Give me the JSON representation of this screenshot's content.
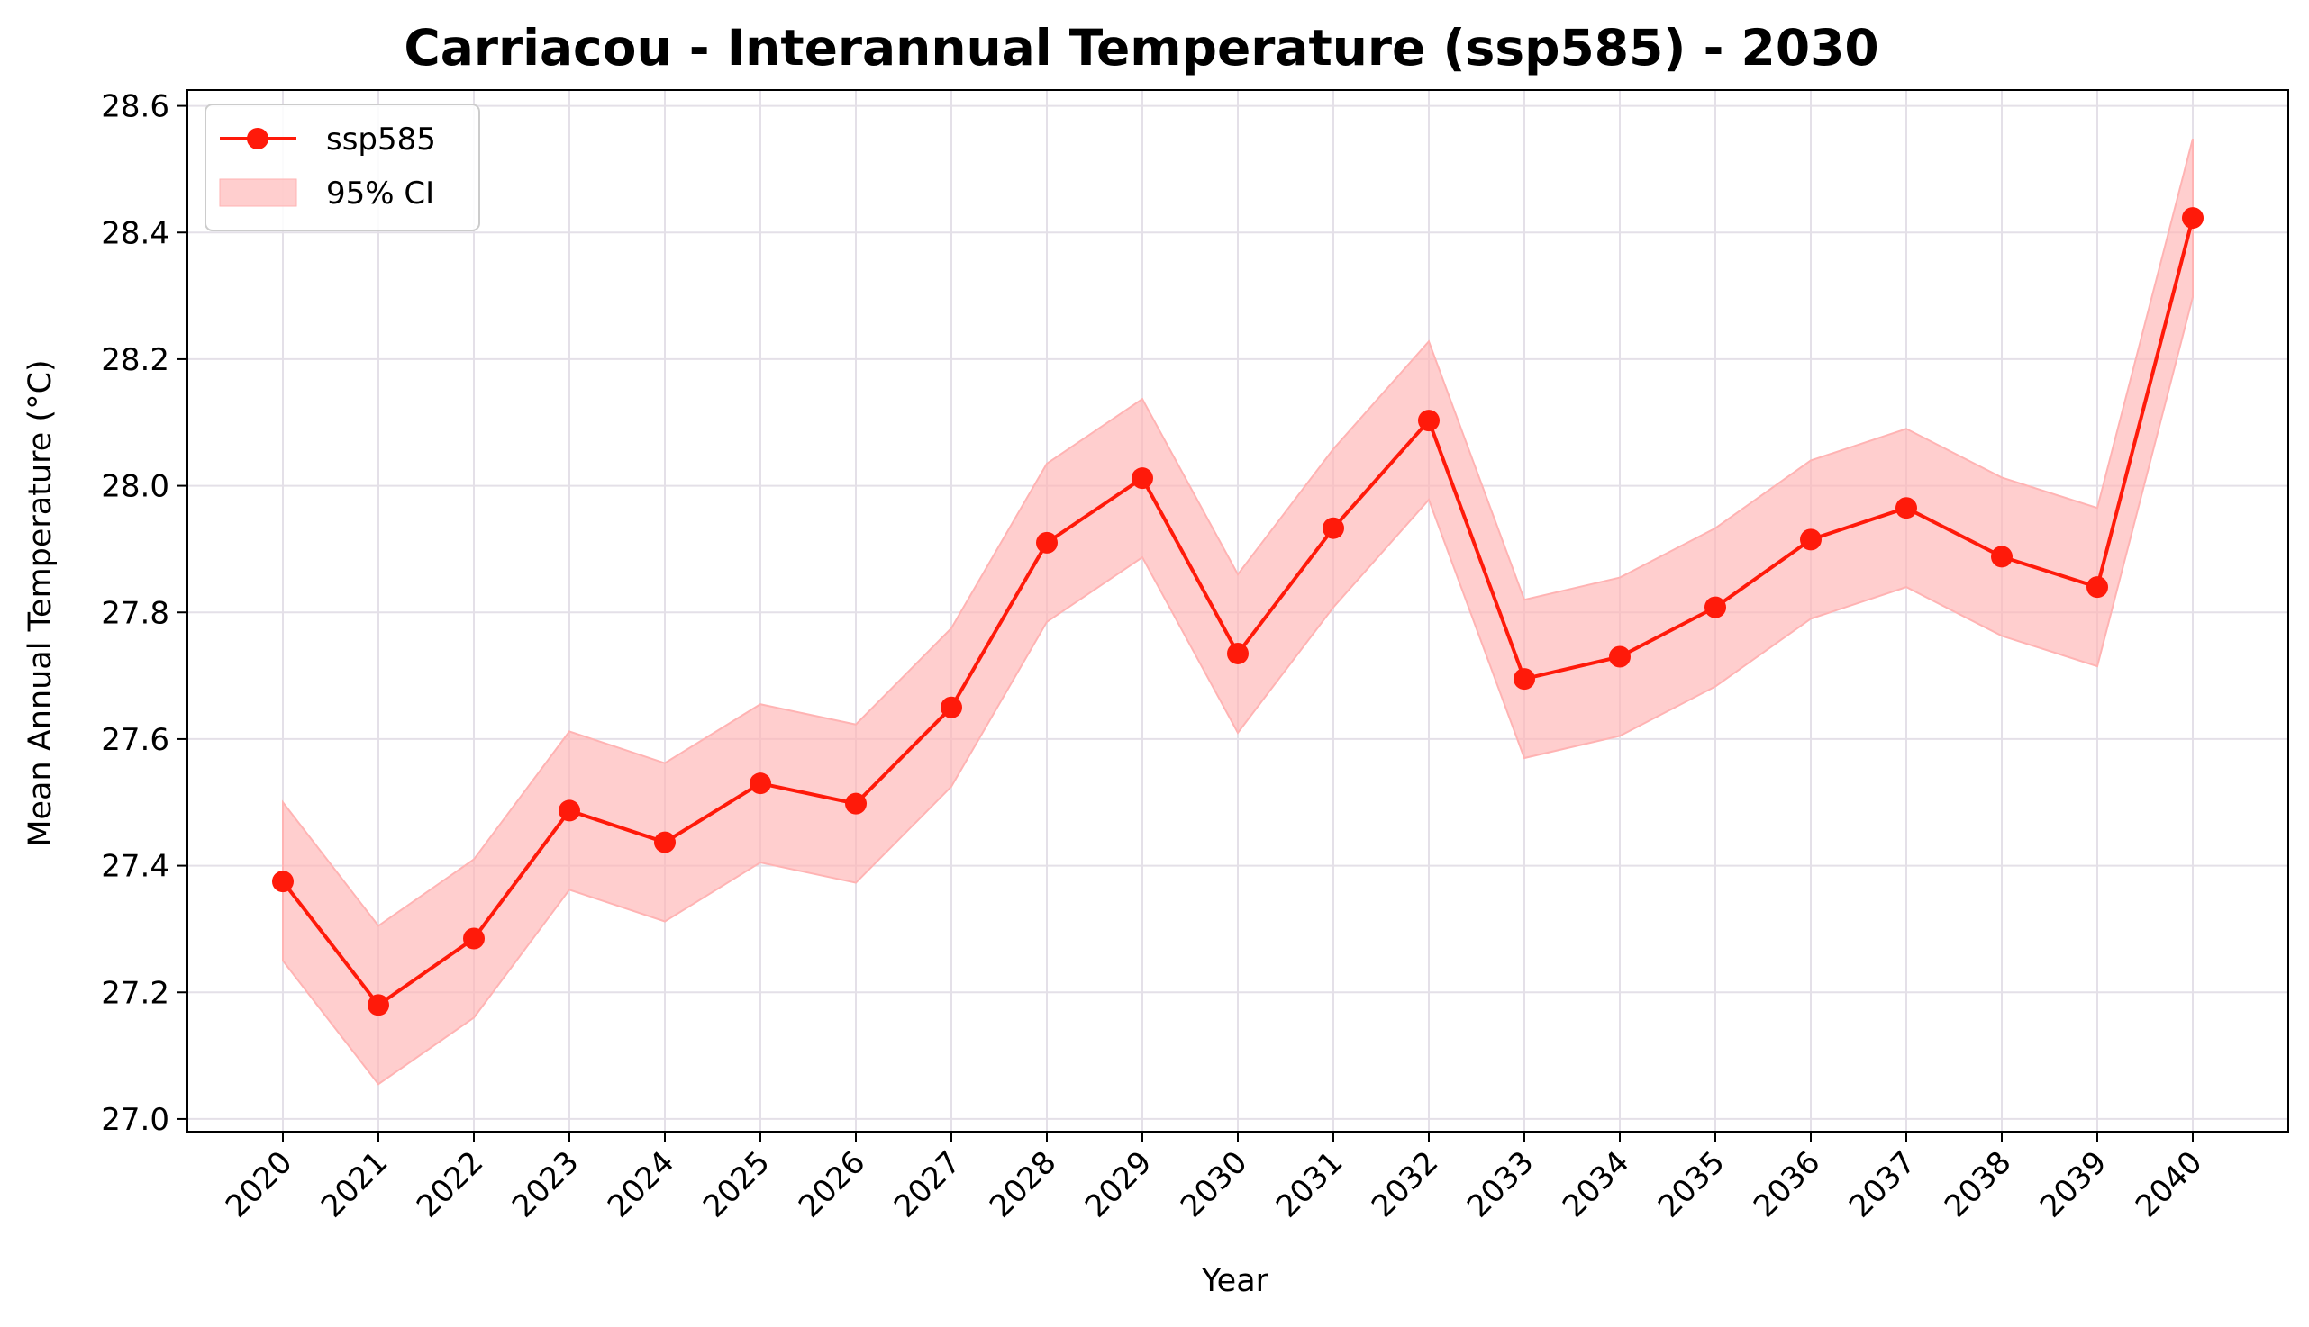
{
  "chart_data": {
    "type": "line",
    "title": "Carriacou - Interannual Temperature (ssp585) - 2030",
    "xlabel": "Year",
    "ylabel": "Mean Annual Temperature (°C)",
    "categories": [
      "2020",
      "2021",
      "2022",
      "2023",
      "2024",
      "2025",
      "2026",
      "2027",
      "2028",
      "2029",
      "2030",
      "2031",
      "2032",
      "2033",
      "2034",
      "2035",
      "2036",
      "2037",
      "2038",
      "2039",
      "2040"
    ],
    "series": [
      {
        "name": "ssp585",
        "color": "#ff1a0a",
        "values": [
          27.375,
          27.18,
          27.285,
          27.487,
          27.437,
          27.53,
          27.498,
          27.65,
          27.91,
          28.012,
          27.735,
          27.933,
          28.103,
          27.695,
          27.73,
          27.808,
          27.915,
          27.965,
          27.888,
          27.84,
          28.423
        ],
        "ci_lower": [
          27.25,
          27.055,
          27.16,
          27.362,
          27.312,
          27.405,
          27.373,
          27.525,
          27.785,
          27.887,
          27.61,
          27.808,
          27.978,
          27.57,
          27.605,
          27.683,
          27.79,
          27.84,
          27.763,
          27.715,
          28.298
        ],
        "ci_upper": [
          27.5,
          27.305,
          27.41,
          27.612,
          27.562,
          27.655,
          27.623,
          27.775,
          28.035,
          28.137,
          27.86,
          28.058,
          28.228,
          27.82,
          27.855,
          27.933,
          28.04,
          28.09,
          28.013,
          27.965,
          28.548
        ]
      }
    ],
    "ci_label": "95% CI",
    "ci_color": "#ffb3b3",
    "ylim": [
      26.98,
      28.625
    ],
    "yticks": [
      27.0,
      27.2,
      27.4,
      27.6,
      27.8,
      28.0,
      28.2,
      28.4,
      28.6
    ],
    "ytick_labels": [
      "27.0",
      "27.2",
      "27.4",
      "27.6",
      "27.8",
      "28.0",
      "28.2",
      "28.4",
      "28.6"
    ],
    "grid": true,
    "legend_position": "top-left"
  }
}
